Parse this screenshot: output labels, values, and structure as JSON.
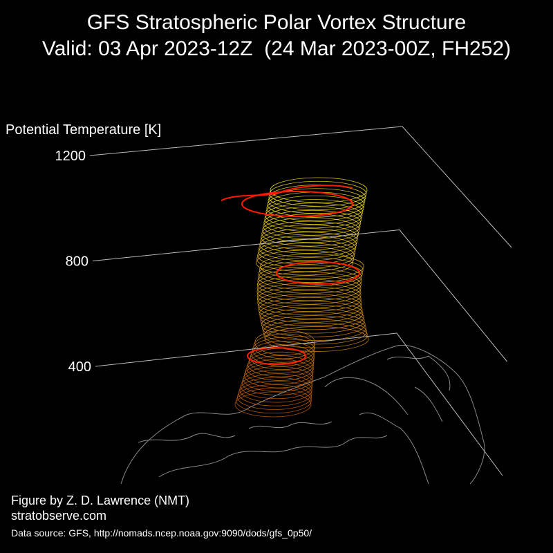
{
  "chart_data": {
    "type": "3d-contour",
    "title": "GFS Stratospheric Polar Vortex Structure",
    "subtitle": "Valid: 03 Apr 2023-12Z  (24 Mar 2023-00Z, FH252)",
    "zlabel": "Potential Temperature [K]",
    "zlim": [
      400,
      1200
    ],
    "zticks": [
      400,
      800,
      1200
    ],
    "annotations": [
      "Figure by Z. D. Lawrence (NMT)",
      "stratobserve.com",
      "Data source: GFS, http://nomads.ncep.noaa.gov:9090/dods/gfs_0p50/"
    ]
  }
}
